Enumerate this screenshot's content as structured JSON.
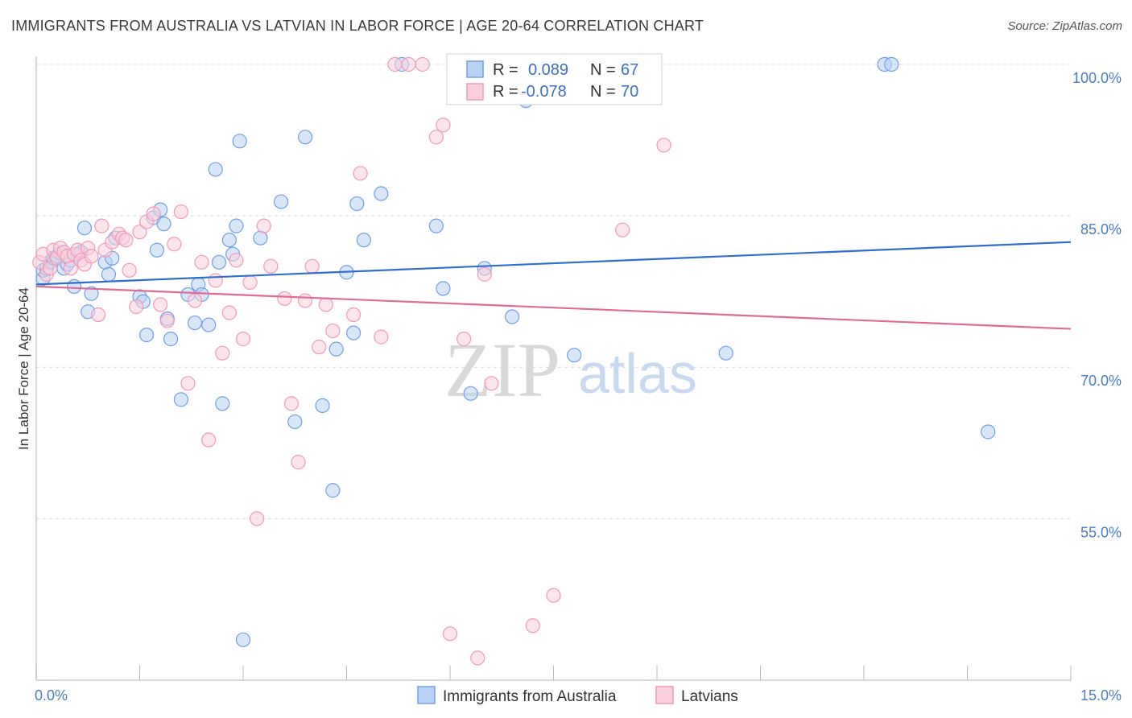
{
  "title": "IMMIGRANTS FROM AUSTRALIA VS LATVIAN IN LABOR FORCE | AGE 20-64 CORRELATION CHART",
  "source": "Source: ZipAtlas.com",
  "watermark": {
    "zip": "ZIP",
    "atlas": "atlas"
  },
  "stats_box": {
    "rows": [
      {
        "r_label": "R =",
        "r_value": "0.089",
        "n_label": "N =",
        "n_value": "67",
        "color": "#6fa0e6"
      },
      {
        "r_label": "R =",
        "r_value": "-0.078",
        "n_label": "N =",
        "n_value": "70",
        "color": "#f09ab8"
      }
    ]
  },
  "chart_data": {
    "type": "scatter",
    "title": "IMMIGRANTS FROM AUSTRALIA VS LATVIAN IN LABOR FORCE | AGE 20-64 CORRELATION CHART",
    "xlabel": "",
    "ylabel": "In Labor Force | Age 20-64",
    "xlim": [
      0,
      15
    ],
    "ylim": [
      39,
      100
    ],
    "x_tick_labels": {
      "0": "0.0%",
      "15": "15.0%"
    },
    "y_ticks": [
      100,
      85,
      70,
      55
    ],
    "y_tick_labels": [
      "100.0%",
      "85.0%",
      "70.0%",
      "55.0%"
    ],
    "grid": true,
    "legend_position": "bottom-center",
    "series": [
      {
        "name": "Immigrants from Australia",
        "color": "#6fa0e6",
        "fill": "#b9d1f3",
        "trend": {
          "x": [
            0,
            15
          ],
          "y": [
            78.2,
            82.4
          ]
        },
        "points": [
          [
            0.1,
            78.8
          ],
          [
            0.1,
            79.6
          ],
          [
            0.15,
            79.8
          ],
          [
            0.2,
            80.4
          ],
          [
            0.25,
            80.8
          ],
          [
            0.3,
            81.0
          ],
          [
            0.35,
            81.3
          ],
          [
            0.4,
            79.8
          ],
          [
            0.45,
            80.2
          ],
          [
            0.5,
            80.6
          ],
          [
            0.55,
            78.0
          ],
          [
            0.6,
            81.2
          ],
          [
            0.65,
            81.4
          ],
          [
            0.7,
            83.8
          ],
          [
            0.75,
            75.5
          ],
          [
            0.8,
            77.3
          ],
          [
            1.0,
            80.4
          ],
          [
            1.05,
            79.2
          ],
          [
            1.1,
            80.8
          ],
          [
            1.15,
            82.8
          ],
          [
            1.5,
            77.0
          ],
          [
            1.55,
            76.5
          ],
          [
            1.6,
            73.2
          ],
          [
            1.7,
            84.8
          ],
          [
            1.75,
            81.6
          ],
          [
            1.8,
            85.6
          ],
          [
            1.85,
            84.2
          ],
          [
            1.9,
            74.8
          ],
          [
            1.95,
            72.8
          ],
          [
            2.1,
            66.8
          ],
          [
            2.2,
            77.2
          ],
          [
            2.3,
            74.4
          ],
          [
            2.35,
            78.2
          ],
          [
            2.4,
            77.2
          ],
          [
            2.5,
            74.2
          ],
          [
            2.6,
            89.6
          ],
          [
            2.65,
            80.4
          ],
          [
            2.7,
            66.4
          ],
          [
            2.8,
            82.6
          ],
          [
            2.85,
            81.2
          ],
          [
            2.9,
            84.0
          ],
          [
            2.95,
            92.4
          ],
          [
            3.0,
            43.0
          ],
          [
            3.25,
            82.8
          ],
          [
            3.55,
            86.4
          ],
          [
            3.75,
            64.6
          ],
          [
            3.9,
            92.8
          ],
          [
            4.15,
            66.2
          ],
          [
            4.3,
            57.8
          ],
          [
            4.35,
            71.8
          ],
          [
            4.5,
            79.4
          ],
          [
            4.6,
            73.4
          ],
          [
            4.65,
            86.2
          ],
          [
            4.75,
            82.6
          ],
          [
            5.0,
            87.2
          ],
          [
            5.3,
            100.0
          ],
          [
            5.8,
            84.0
          ],
          [
            5.9,
            77.8
          ],
          [
            6.3,
            67.4
          ],
          [
            6.5,
            79.8
          ],
          [
            6.9,
            75.0
          ],
          [
            7.1,
            96.4
          ],
          [
            7.8,
            71.2
          ],
          [
            10.0,
            71.4
          ],
          [
            12.3,
            100.0
          ],
          [
            12.4,
            100.0
          ],
          [
            13.8,
            63.6
          ]
        ]
      },
      {
        "name": "Latvians",
        "color": "#f09ab8",
        "fill": "#fbcfdc",
        "trend": {
          "x": [
            0,
            15
          ],
          "y": [
            78.0,
            73.8
          ]
        },
        "points": [
          [
            0.05,
            80.4
          ],
          [
            0.1,
            81.2
          ],
          [
            0.15,
            79.2
          ],
          [
            0.2,
            79.8
          ],
          [
            0.25,
            81.6
          ],
          [
            0.3,
            80.8
          ],
          [
            0.35,
            81.8
          ],
          [
            0.4,
            81.4
          ],
          [
            0.45,
            81.0
          ],
          [
            0.5,
            79.8
          ],
          [
            0.55,
            81.2
          ],
          [
            0.6,
            81.6
          ],
          [
            0.65,
            80.6
          ],
          [
            0.7,
            80.2
          ],
          [
            0.75,
            81.8
          ],
          [
            0.8,
            81.0
          ],
          [
            0.9,
            75.2
          ],
          [
            0.95,
            84.0
          ],
          [
            1.0,
            81.6
          ],
          [
            1.1,
            82.4
          ],
          [
            1.2,
            83.2
          ],
          [
            1.25,
            82.8
          ],
          [
            1.3,
            82.6
          ],
          [
            1.35,
            79.6
          ],
          [
            1.45,
            76.0
          ],
          [
            1.5,
            83.4
          ],
          [
            1.6,
            84.4
          ],
          [
            1.7,
            85.2
          ],
          [
            1.8,
            76.2
          ],
          [
            1.9,
            74.6
          ],
          [
            2.0,
            82.2
          ],
          [
            2.1,
            85.4
          ],
          [
            2.2,
            68.4
          ],
          [
            2.3,
            76.6
          ],
          [
            2.4,
            80.4
          ],
          [
            2.5,
            62.8
          ],
          [
            2.6,
            78.6
          ],
          [
            2.7,
            71.4
          ],
          [
            2.8,
            75.4
          ],
          [
            2.9,
            80.6
          ],
          [
            3.0,
            72.8
          ],
          [
            3.1,
            78.4
          ],
          [
            3.2,
            55.0
          ],
          [
            3.3,
            84.0
          ],
          [
            3.4,
            80.0
          ],
          [
            3.6,
            76.8
          ],
          [
            3.7,
            66.4
          ],
          [
            3.8,
            60.6
          ],
          [
            3.9,
            76.6
          ],
          [
            4.0,
            80.0
          ],
          [
            4.1,
            72.0
          ],
          [
            4.2,
            76.2
          ],
          [
            4.3,
            73.6
          ],
          [
            4.6,
            75.2
          ],
          [
            4.7,
            89.2
          ],
          [
            5.0,
            73.0
          ],
          [
            5.2,
            100.0
          ],
          [
            5.4,
            100.0
          ],
          [
            5.6,
            100.0
          ],
          [
            5.8,
            92.8
          ],
          [
            5.9,
            94.0
          ],
          [
            6.0,
            43.6
          ],
          [
            6.2,
            72.8
          ],
          [
            6.4,
            41.2
          ],
          [
            6.5,
            79.2
          ],
          [
            6.6,
            68.4
          ],
          [
            7.2,
            44.4
          ],
          [
            7.5,
            47.4
          ],
          [
            8.5,
            83.6
          ],
          [
            9.1,
            92.0
          ]
        ]
      }
    ]
  },
  "legend": {
    "items": [
      {
        "label": "Immigrants from Australia",
        "color": "#6fa0e6",
        "fill": "#b9d1f3"
      },
      {
        "label": "Latvians",
        "color": "#f09ab8",
        "fill": "#fbcfdc"
      }
    ]
  }
}
